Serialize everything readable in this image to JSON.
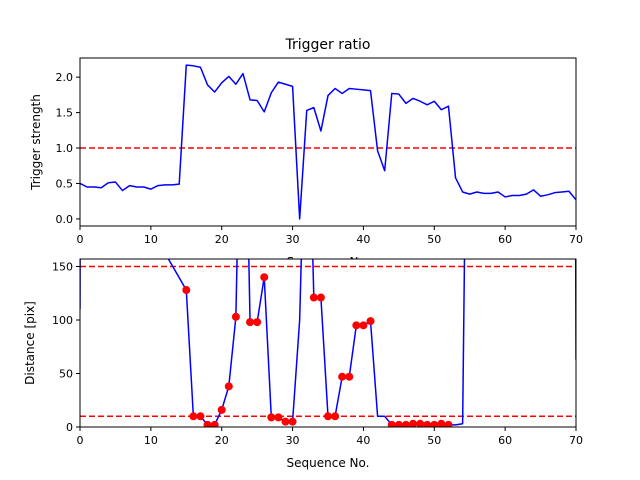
{
  "chart_data": [
    {
      "type": "line",
      "title": "Trigger ratio",
      "xlabel": "Sequence No.",
      "ylabel": "Trigger strength",
      "xlim": [
        0,
        70
      ],
      "ylim": [
        -0.1,
        2.27
      ],
      "xticks": [
        0,
        10,
        20,
        30,
        40,
        50,
        60,
        70
      ],
      "yticks": [
        0.0,
        0.5,
        1.0,
        1.5,
        2.0
      ],
      "ytick_labels": [
        "0.0",
        "0.5",
        "1.0",
        "1.5",
        "2.0"
      ],
      "grid": false,
      "colors": {
        "line": "#0000ff",
        "threshold": "#ff0000"
      },
      "threshold_lines": [
        1.0
      ],
      "series": [
        {
          "x": [
            0,
            1,
            2,
            3,
            4,
            5,
            6,
            7,
            8,
            9,
            10,
            11,
            12,
            13,
            14,
            15,
            16,
            17,
            18,
            19,
            20,
            21,
            22,
            23,
            24,
            25,
            26,
            27,
            28,
            29,
            30,
            31,
            32,
            33,
            34,
            35,
            36,
            37,
            38,
            39,
            40,
            41,
            42,
            43,
            44,
            45,
            46,
            47,
            48,
            49,
            50,
            51,
            52,
            53,
            54,
            55,
            56,
            57,
            58,
            59,
            60,
            61,
            62,
            63,
            64,
            65,
            66,
            67,
            68,
            69,
            70
          ],
          "values": [
            0.5,
            0.45,
            0.45,
            0.44,
            0.51,
            0.52,
            0.4,
            0.47,
            0.45,
            0.45,
            0.42,
            0.47,
            0.48,
            0.48,
            0.49,
            2.17,
            2.16,
            2.14,
            1.89,
            1.79,
            1.92,
            2.01,
            1.9,
            2.05,
            1.68,
            1.67,
            1.51,
            1.78,
            1.93,
            1.9,
            1.87,
            0.0,
            1.53,
            1.57,
            1.24,
            1.74,
            1.84,
            1.77,
            1.84,
            1.83,
            1.82,
            1.81,
            0.96,
            0.68,
            1.77,
            1.76,
            1.63,
            1.7,
            1.66,
            1.61,
            1.66,
            1.54,
            1.59,
            0.58,
            0.38,
            0.35,
            0.38,
            0.36,
            0.36,
            0.38,
            0.31,
            0.33,
            0.33,
            0.35,
            0.41,
            0.32,
            0.34,
            0.37,
            0.38,
            0.39,
            0.27
          ]
        }
      ]
    },
    {
      "type": "line",
      "title": "",
      "xlabel": "Sequence No.",
      "ylabel": "Distance [pix]",
      "xlim": [
        0,
        70
      ],
      "ylim": [
        0,
        157
      ],
      "xticks": [
        0,
        10,
        20,
        30,
        40,
        50,
        60,
        70
      ],
      "yticks": [
        0,
        50,
        100,
        150
      ],
      "grid": false,
      "colors": {
        "line": "#0000ff",
        "markers": "#ff0000",
        "threshold": "#ff0000"
      },
      "threshold_lines": [
        10,
        150
      ],
      "series": [
        {
          "x": [
            0,
            0.05,
            15,
            16,
            17,
            18,
            19,
            20,
            21,
            22,
            22.6,
            23.4,
            24,
            25,
            26,
            27,
            28,
            29,
            30,
            31,
            31.8,
            32.3,
            33,
            34,
            35,
            36,
            37,
            38,
            39,
            40,
            41,
            42,
            43,
            44,
            45,
            46,
            47,
            48,
            49,
            50,
            51,
            52,
            53,
            54,
            54.5,
            69.9,
            70
          ],
          "values": [
            110,
            300,
            128,
            10,
            10,
            2,
            2,
            16,
            38,
            103,
            300,
            300,
            98,
            98,
            140,
            9,
            9,
            5,
            5,
            100,
            300,
            300,
            121,
            121,
            10,
            10,
            47,
            47,
            95,
            95,
            99,
            10,
            10,
            2,
            2,
            2,
            3,
            3,
            2,
            2,
            3,
            2,
            2,
            3,
            300,
            300,
            63
          ]
        }
      ],
      "markers": {
        "x": [
          15,
          16,
          17,
          18,
          19,
          20,
          21,
          22,
          24,
          25,
          26,
          27,
          28,
          29,
          30,
          33,
          34,
          35,
          36,
          37,
          38,
          39,
          40,
          41,
          44,
          45,
          46,
          47,
          48,
          49,
          50,
          51,
          52
        ],
        "values": [
          128,
          10,
          10,
          2,
          2,
          16,
          38,
          103,
          98,
          98,
          140,
          9,
          9,
          5,
          5,
          121,
          121,
          10,
          10,
          47,
          47,
          95,
          95,
          99,
          2,
          2,
          2,
          3,
          3,
          2,
          2,
          3,
          2
        ]
      }
    }
  ]
}
